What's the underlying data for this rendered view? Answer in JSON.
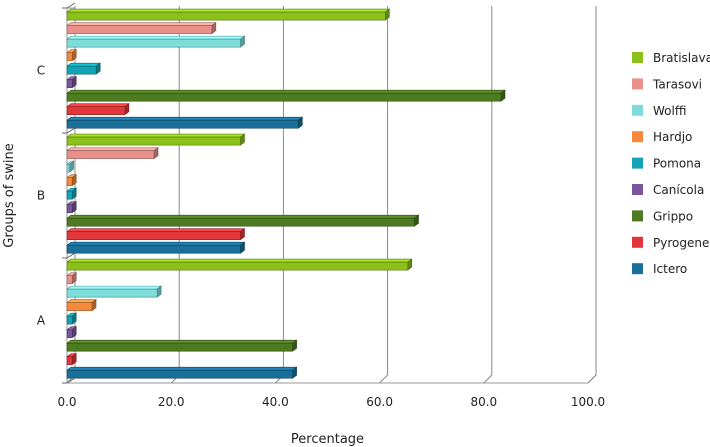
{
  "chart_data": {
    "type": "bar",
    "orientation": "horizontal",
    "style": "3d",
    "xlabel": "Percentage",
    "ylabel": "Groups of swine",
    "xlim": [
      0,
      100
    ],
    "xticks": [
      "0.0",
      "20.0",
      "40.0",
      "60.0",
      "80.0",
      "100.0"
    ],
    "grid": true,
    "legend_position": "right",
    "categories": [
      "A",
      "B",
      "C"
    ],
    "series": [
      {
        "name": "Bratislava",
        "color": "#8cc11a",
        "values": [
          65.4,
          33.3,
          61.1
        ]
      },
      {
        "name": "Tarasovi",
        "color": "#e8918a",
        "values": [
          1.0,
          16.7,
          27.8
        ]
      },
      {
        "name": "Wolffi",
        "color": "#7fddd9",
        "values": [
          17.3,
          0.5,
          33.3
        ]
      },
      {
        "name": "Hardjo",
        "color": "#f58a3c",
        "values": [
          4.8,
          1.0,
          1.0
        ]
      },
      {
        "name": "Pomona",
        "color": "#12a4b6",
        "values": [
          1.0,
          1.0,
          5.6
        ]
      },
      {
        "name": "Canícola",
        "color": "#7b559c",
        "values": [
          1.0,
          1.0,
          1.0
        ]
      },
      {
        "name": "Grippo",
        "color": "#4e7a22",
        "values": [
          43.3,
          66.7,
          83.3
        ]
      },
      {
        "name": "Pyrogenes",
        "color": "#e1373b",
        "values": [
          1.0,
          33.3,
          11.1
        ]
      },
      {
        "name": "Ictero",
        "color": "#1a6f9a",
        "values": [
          43.3,
          33.3,
          44.4
        ]
      }
    ]
  }
}
